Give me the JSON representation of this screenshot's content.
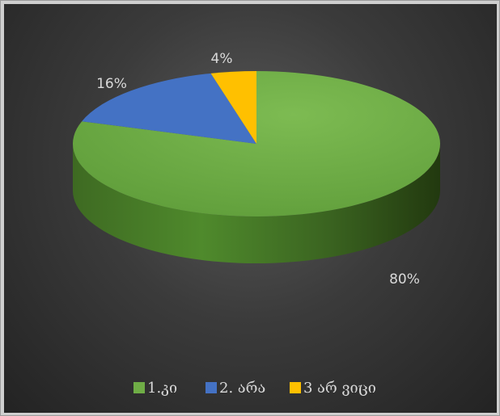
{
  "chart_data": {
    "type": "pie",
    "style": "3d",
    "legend_position": "bottom",
    "slices": [
      {
        "label": "1.კი",
        "value": 80,
        "display": "80%",
        "color": "#6fad46"
      },
      {
        "label": "2. არა",
        "value": 16,
        "display": "16%",
        "color": "#4472c4"
      },
      {
        "label": "3 არ ვიცი",
        "value": 4,
        "display": "4%",
        "color": "#ffc000"
      }
    ]
  }
}
